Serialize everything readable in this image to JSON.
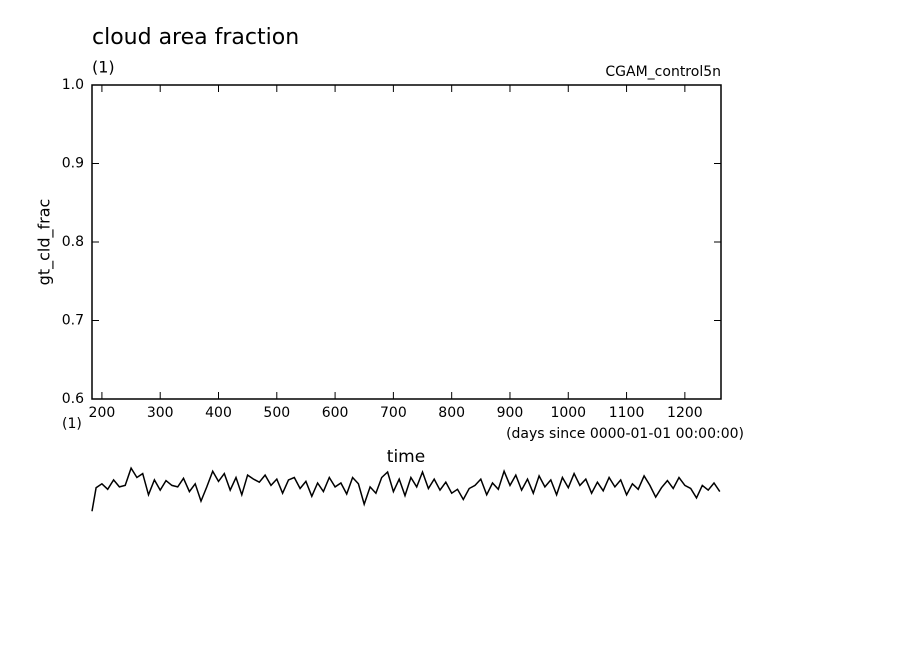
{
  "chart_data": {
    "type": "line",
    "title": "cloud area fraction",
    "y_unit": "(1)",
    "run_name": "CGAM_control5n",
    "ylabel": "gt_cld_frac",
    "x_unit": "(1)",
    "x_note": "(days since 0000-01-01 00:00:00)",
    "xlabel": "time",
    "xlim": [
      183,
      1262
    ],
    "ylim": [
      0.6,
      1.0
    ],
    "xticks": [
      200,
      300,
      400,
      500,
      600,
      700,
      800,
      900,
      1000,
      1100,
      1200
    ],
    "yticks": [
      0.6,
      0.7,
      0.8,
      0.9,
      {
        "value": 1,
        "label": "1.0"
      }
    ],
    "color": "#000000",
    "x": [
      183,
      190,
      200,
      210,
      220,
      230,
      240,
      250,
      260,
      270,
      280,
      290,
      300,
      310,
      320,
      330,
      340,
      350,
      360,
      370,
      380,
      390,
      400,
      410,
      420,
      430,
      440,
      450,
      460,
      470,
      480,
      490,
      500,
      510,
      520,
      530,
      540,
      550,
      560,
      570,
      580,
      590,
      600,
      610,
      620,
      630,
      640,
      650,
      660,
      670,
      680,
      690,
      700,
      710,
      720,
      730,
      740,
      750,
      760,
      770,
      780,
      790,
      800,
      810,
      820,
      830,
      840,
      850,
      860,
      870,
      880,
      890,
      900,
      910,
      920,
      930,
      940,
      950,
      960,
      970,
      980,
      990,
      1000,
      1010,
      1020,
      1030,
      1040,
      1050,
      1060,
      1070,
      1080,
      1090,
      1100,
      1110,
      1120,
      1130,
      1140,
      1150,
      1160,
      1170,
      1180,
      1190,
      1200,
      1210,
      1220,
      1230,
      1240,
      1250,
      1260
    ],
    "values": [
      0.457,
      0.487,
      0.492,
      0.485,
      0.497,
      0.488,
      0.49,
      0.512,
      0.5,
      0.505,
      0.478,
      0.497,
      0.484,
      0.496,
      0.49,
      0.488,
      0.499,
      0.482,
      0.492,
      0.47,
      0.488,
      0.508,
      0.495,
      0.505,
      0.484,
      0.5,
      0.478,
      0.503,
      0.498,
      0.494,
      0.503,
      0.49,
      0.498,
      0.48,
      0.497,
      0.5,
      0.486,
      0.495,
      0.476,
      0.493,
      0.482,
      0.5,
      0.488,
      0.493,
      0.479,
      0.5,
      0.492,
      0.466,
      0.488,
      0.48,
      0.5,
      0.507,
      0.482,
      0.498,
      0.477,
      0.5,
      0.488,
      0.507,
      0.486,
      0.498,
      0.484,
      0.494,
      0.48,
      0.485,
      0.472,
      0.486,
      0.49,
      0.498,
      0.478,
      0.493,
      0.485,
      0.508,
      0.49,
      0.503,
      0.484,
      0.498,
      0.48,
      0.502,
      0.488,
      0.497,
      0.478,
      0.5,
      0.487,
      0.505,
      0.49,
      0.498,
      0.48,
      0.494,
      0.483,
      0.5,
      0.488,
      0.497,
      0.478,
      0.492,
      0.485,
      0.502,
      0.49,
      0.475,
      0.487,
      0.496,
      0.486,
      0.5,
      0.49,
      0.486,
      0.474,
      0.49,
      0.484,
      0.493,
      0.482
    ]
  }
}
